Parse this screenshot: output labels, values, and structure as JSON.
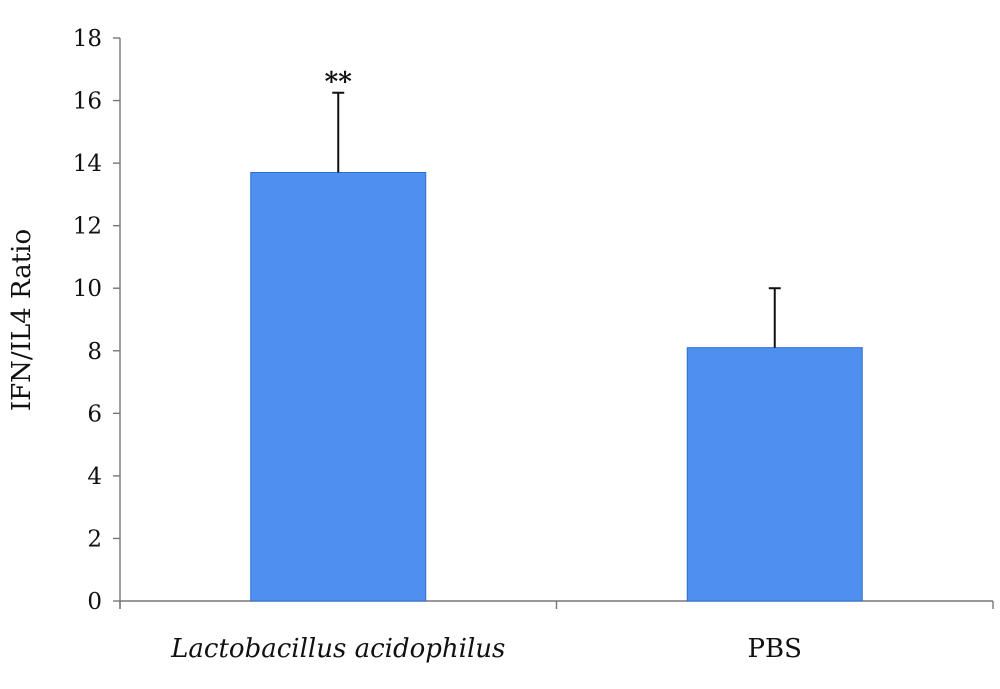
{
  "chart_data": {
    "type": "bar",
    "categories": [
      "Lactobacillus acidophilus",
      "PBS"
    ],
    "category_italic": [
      true,
      false
    ],
    "values": [
      13.7,
      8.1
    ],
    "error_plus": [
      2.55,
      1.9
    ],
    "annotations": [
      "**",
      ""
    ],
    "title": "",
    "xlabel": "",
    "ylabel": "IFN/IL4 Ratio",
    "ylim": [
      0,
      18
    ],
    "yticks": [
      0,
      2,
      4,
      6,
      8,
      10,
      12,
      14,
      16,
      18
    ],
    "grid": false,
    "bar_color": "#4f8fef",
    "bar_edge_color": "#2f6fd0"
  }
}
